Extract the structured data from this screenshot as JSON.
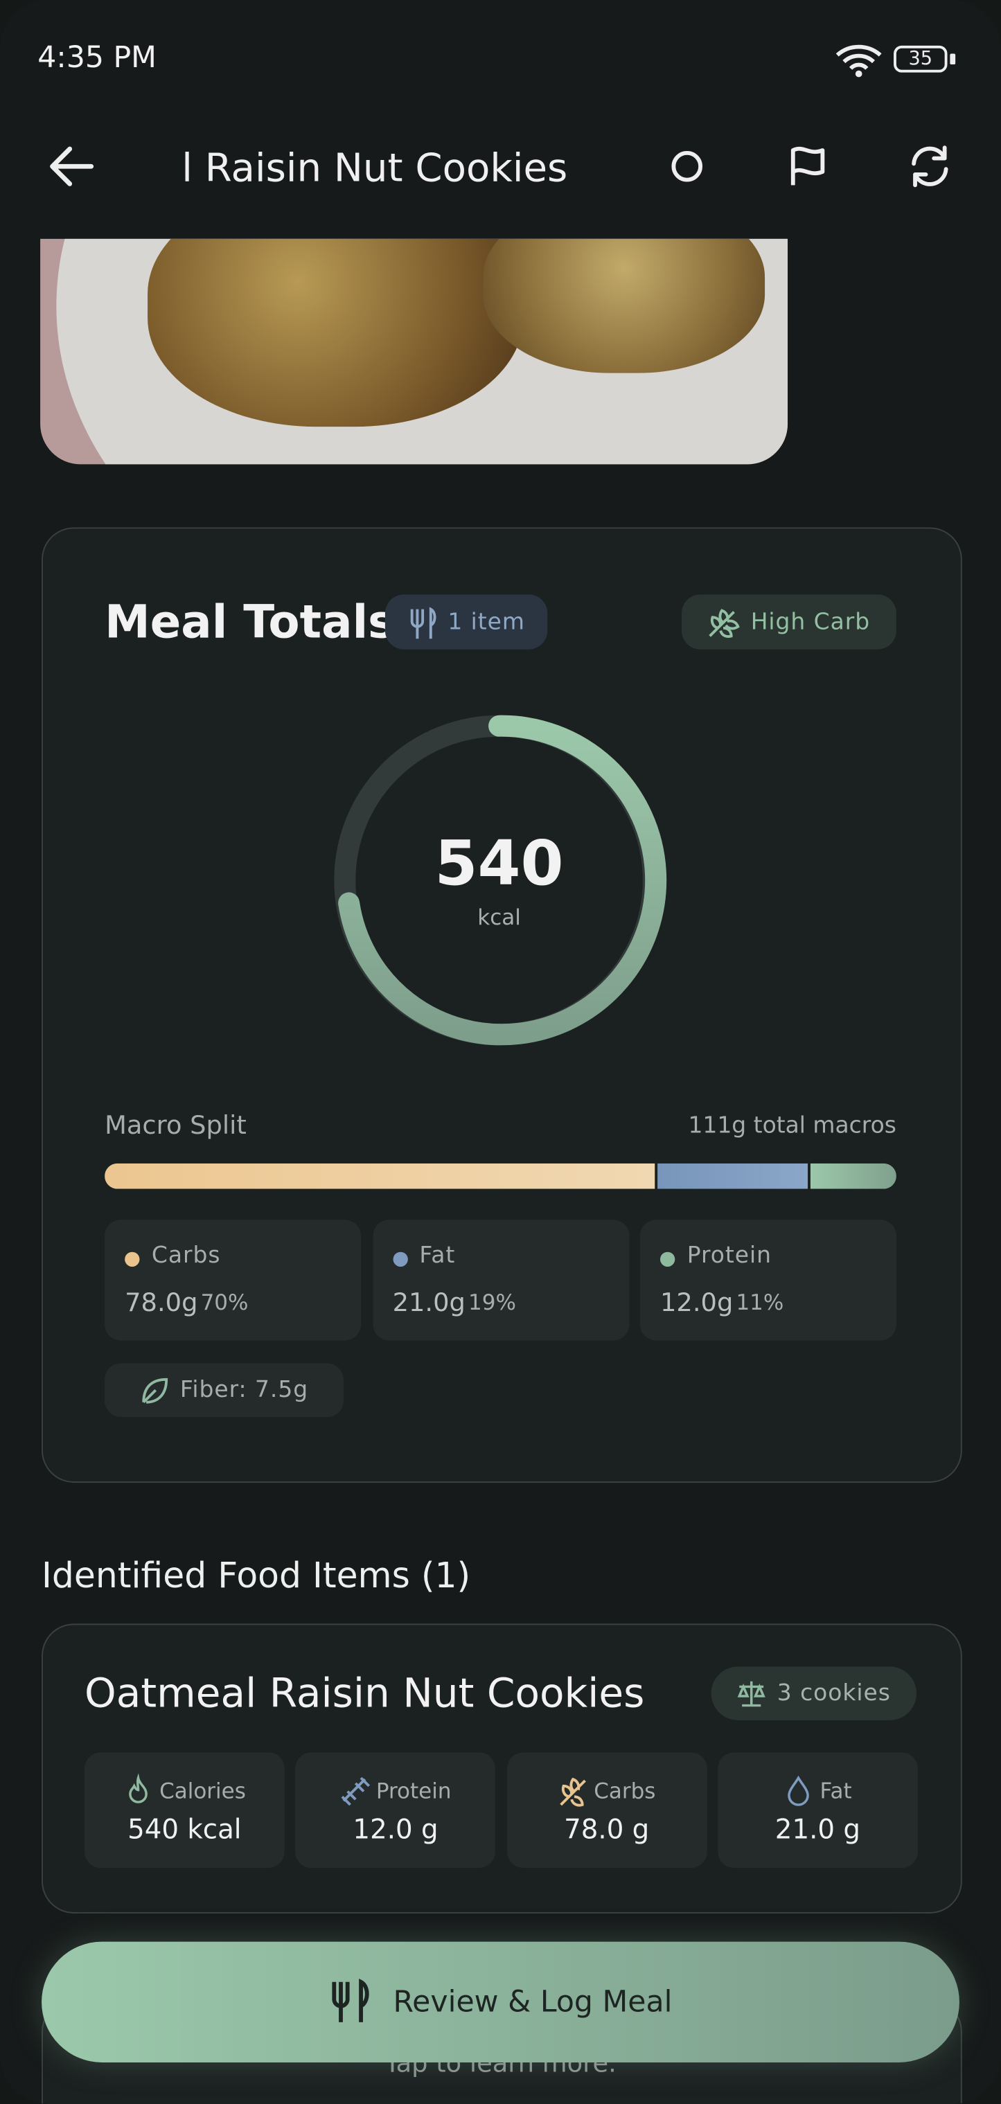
{
  "status_bar": {
    "time": "4:35 PM",
    "battery": "35"
  },
  "header": {
    "title": "Oatmeal Raisin Nut Cookies"
  },
  "meal_totals": {
    "title": "Meal Totals",
    "items_chip": "1 item",
    "tag_chip": "High Carb",
    "calories": "540",
    "calories_unit": "kcal",
    "macro_split_label": "Macro Split",
    "total_macros": "111g total macros",
    "macros": [
      {
        "name": "Carbs",
        "amount": "78.0g",
        "percent": "70%"
      },
      {
        "name": "Fat",
        "amount": "21.0g",
        "percent": "19%"
      },
      {
        "name": "Protein",
        "amount": "12.0g",
        "percent": "11%"
      }
    ],
    "fiber": "Fiber: 7.5g"
  },
  "food_items": {
    "title": "Identified Food Items (1)",
    "items": [
      {
        "name": "Oatmeal Raisin Nut Cookies",
        "portion": "3 cookies",
        "stats": [
          {
            "label": "Calories",
            "value": "540 kcal"
          },
          {
            "label": "Protein",
            "value": "12.0 g"
          },
          {
            "label": "Carbs",
            "value": "78.0 g"
          },
          {
            "label": "Fat",
            "value": "21.0 g"
          }
        ]
      }
    ],
    "hint": "Tap to learn more."
  },
  "action_button": {
    "label": "Review & Log Meal"
  }
}
